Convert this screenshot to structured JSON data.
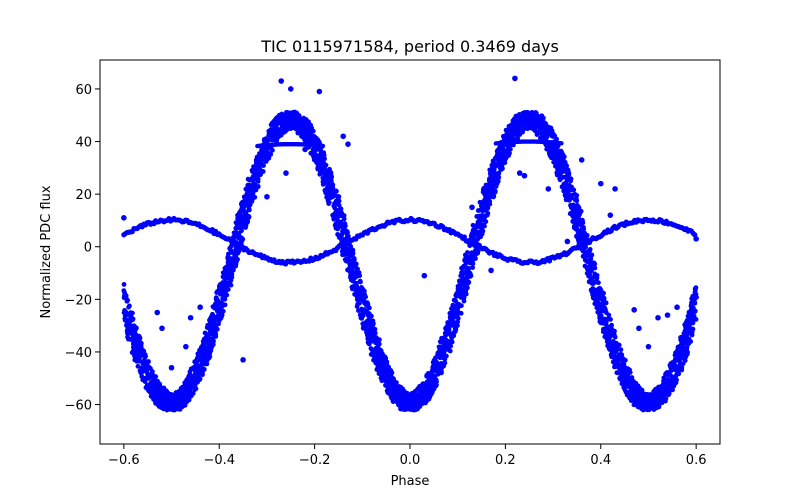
{
  "chart_data": {
    "type": "scatter",
    "title": "TIC 0115971584, period 0.3469 days",
    "xlabel": "Phase",
    "ylabel": "Normalized PDC flux",
    "xlim": [
      -0.65,
      0.65
    ],
    "ylim": [
      -75,
      71
    ],
    "xticks": [
      -0.6,
      -0.4,
      -0.2,
      0.0,
      0.2,
      0.4,
      0.6
    ],
    "xtick_labels": [
      "−0.6",
      "−0.4",
      "−0.2",
      "0.0",
      "0.2",
      "0.4",
      "0.6"
    ],
    "yticks": [
      -60,
      -40,
      -20,
      0,
      20,
      40,
      60
    ],
    "ytick_labels": [
      "−60",
      "−40",
      "−20",
      "0",
      "20",
      "40",
      "60"
    ],
    "grid": false,
    "legend": null,
    "marker_color": "#0000ff",
    "series": [
      {
        "description_key": "large-amplitude pulsation band",
        "x_range": [
          -0.6,
          0.6
        ],
        "components": [
          {
            "phase_of_peak": -0.25,
            "peak_flux": 48
          },
          {
            "phase_of_peak": 0.25,
            "peak_flux": 48
          },
          {
            "phase_of_trough": -0.5,
            "trough_flux": -58
          },
          {
            "phase_of_trough": 0.0,
            "trough_flux": -61
          },
          {
            "phase_of_trough": 0.5,
            "trough_flux": -58
          }
        ]
      },
      {
        "description_key": "small-amplitude track",
        "x_range": [
          -0.6,
          0.6
        ],
        "components": [
          {
            "phase_of_peak": -0.5,
            "peak_flux": 10
          },
          {
            "phase_of_peak": 0.0,
            "peak_flux": 10.5
          },
          {
            "phase_of_peak": 0.5,
            "peak_flux": 10
          },
          {
            "phase_of_trough": -0.25,
            "trough_flux": -6
          },
          {
            "phase_of_trough": 0.25,
            "trough_flux": -6
          }
        ]
      },
      {
        "description_key": "outliers",
        "points": [
          [
            -0.6,
            11
          ],
          [
            -0.53,
            -25
          ],
          [
            -0.52,
            -31
          ],
          [
            -0.5,
            -46
          ],
          [
            -0.47,
            -38
          ],
          [
            -0.46,
            -27
          ],
          [
            -0.44,
            -23
          ],
          [
            -0.35,
            -43
          ],
          [
            -0.33,
            26
          ],
          [
            -0.3,
            19
          ],
          [
            -0.27,
            63
          ],
          [
            -0.26,
            28
          ],
          [
            -0.25,
            60
          ],
          [
            -0.22,
            37
          ],
          [
            -0.19,
            59
          ],
          [
            -0.17,
            25
          ],
          [
            -0.15,
            19
          ],
          [
            -0.14,
            42
          ],
          [
            -0.13,
            39
          ],
          [
            -0.12,
            -7
          ],
          [
            -0.11,
            -19
          ],
          [
            0.03,
            -11
          ],
          [
            0.13,
            15
          ],
          [
            0.15,
            5
          ],
          [
            0.17,
            -9
          ],
          [
            0.2,
            39
          ],
          [
            0.22,
            64
          ],
          [
            0.23,
            28
          ],
          [
            0.24,
            27
          ],
          [
            0.29,
            22
          ],
          [
            0.33,
            2
          ],
          [
            0.35,
            4
          ],
          [
            0.36,
            33
          ],
          [
            0.4,
            24
          ],
          [
            0.42,
            12
          ],
          [
            0.43,
            22
          ],
          [
            0.47,
            -24
          ],
          [
            0.48,
            -31
          ],
          [
            0.5,
            -38
          ],
          [
            0.52,
            -27
          ],
          [
            0.54,
            -26
          ],
          [
            0.56,
            -23
          ],
          [
            0.6,
            3
          ]
        ]
      }
    ]
  }
}
